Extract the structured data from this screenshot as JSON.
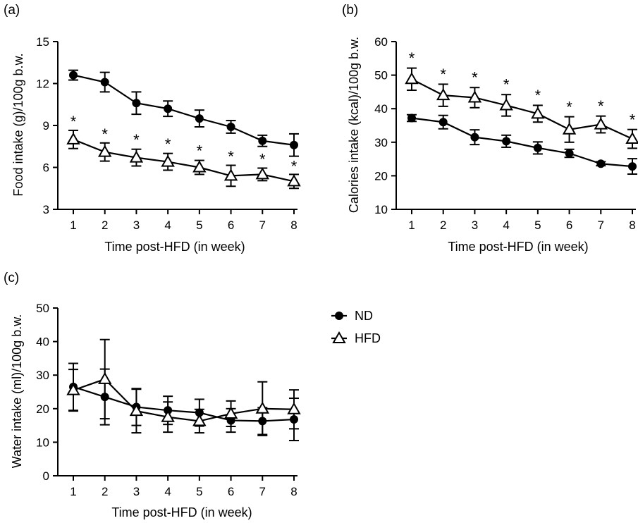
{
  "chart_data": [
    {
      "type": "line",
      "panel": "(a)",
      "xlabel": "Time post-HFD (in week)",
      "ylabel": "Food intake (g)/100g b.w.",
      "x": [
        1,
        2,
        3,
        4,
        5,
        6,
        7,
        8
      ],
      "ylim": [
        3,
        15
      ],
      "yticks": [
        3,
        6,
        9,
        12,
        15
      ],
      "series": [
        {
          "name": "ND",
          "values": [
            12.6,
            12.1,
            10.6,
            10.2,
            9.5,
            8.9,
            7.9,
            7.6
          ],
          "errors": [
            0.35,
            0.7,
            0.8,
            0.55,
            0.6,
            0.45,
            0.4,
            0.8
          ]
        },
        {
          "name": "HFD",
          "values": [
            8.0,
            7.1,
            6.7,
            6.4,
            6.0,
            5.4,
            5.5,
            5.0
          ],
          "errors": [
            0.65,
            0.65,
            0.6,
            0.6,
            0.5,
            0.75,
            0.45,
            0.5
          ]
        }
      ],
      "annotations": [
        {
          "text": "*",
          "x": 1,
          "y": 9.3
        },
        {
          "text": "*",
          "x": 2,
          "y": 8.4
        },
        {
          "text": "*",
          "x": 3,
          "y": 8.0
        },
        {
          "text": "*",
          "x": 4,
          "y": 7.7
        },
        {
          "text": "*",
          "x": 5,
          "y": 7.2
        },
        {
          "text": "*",
          "x": 6,
          "y": 6.8
        },
        {
          "text": "*",
          "x": 7,
          "y": 6.6
        },
        {
          "text": "*",
          "x": 8,
          "y": 6.1
        }
      ]
    },
    {
      "type": "line",
      "panel": "(b)",
      "xlabel": "Time post-HFD (in week)",
      "ylabel": "Calories intake (kcal)/100g b.w.",
      "x": [
        1,
        2,
        3,
        4,
        5,
        6,
        7,
        8
      ],
      "ylim": [
        10,
        60
      ],
      "yticks": [
        10,
        20,
        30,
        40,
        50,
        60
      ],
      "series": [
        {
          "name": "ND",
          "values": [
            37.2,
            36.0,
            31.5,
            30.3,
            28.3,
            26.7,
            23.6,
            22.8
          ],
          "errors": [
            1.0,
            2.0,
            2.2,
            1.8,
            1.8,
            1.2,
            0.6,
            2.3
          ]
        },
        {
          "name": "HFD",
          "values": [
            48.8,
            44.0,
            43.3,
            41.0,
            38.5,
            33.8,
            35.3,
            31.0
          ],
          "errors": [
            3.3,
            3.3,
            3.0,
            3.2,
            2.5,
            3.8,
            2.5,
            2.8
          ]
        }
      ],
      "annotations": [
        {
          "text": "*",
          "x": 1,
          "y": 55.2
        },
        {
          "text": "*",
          "x": 2,
          "y": 50.3
        },
        {
          "text": "*",
          "x": 3,
          "y": 49.4
        },
        {
          "text": "*",
          "x": 4,
          "y": 47.3
        },
        {
          "text": "*",
          "x": 5,
          "y": 44.0
        },
        {
          "text": "*",
          "x": 6,
          "y": 40.6
        },
        {
          "text": "*",
          "x": 7,
          "y": 40.9
        },
        {
          "text": "*",
          "x": 8,
          "y": 36.8
        }
      ]
    },
    {
      "type": "line",
      "panel": "(c)",
      "xlabel": "Time post-HFD (in week)",
      "ylabel": "Water intake (ml)/100g b.w.",
      "x": [
        1,
        2,
        3,
        4,
        5,
        6,
        7,
        8
      ],
      "ylim": [
        0,
        50
      ],
      "yticks": [
        0,
        10,
        20,
        30,
        40,
        50
      ],
      "series": [
        {
          "name": "ND",
          "values": [
            26.5,
            23.5,
            20.5,
            19.5,
            18.8,
            16.5,
            16.3,
            16.8
          ],
          "errors": [
            7.0,
            8.3,
            5.5,
            4.2,
            4.0,
            3.5,
            4.0,
            6.3
          ]
        },
        {
          "name": "HFD",
          "values": [
            25.5,
            28.8,
            19.3,
            17.5,
            16.3,
            18.5,
            20.0,
            19.8
          ],
          "errors": [
            6.2,
            11.8,
            6.5,
            4.5,
            3.5,
            3.8,
            8.0,
            5.8
          ]
        }
      ],
      "annotations": []
    }
  ],
  "legend": {
    "items": [
      {
        "label": "ND",
        "marker": "filled-circle"
      },
      {
        "label": "HFD",
        "marker": "open-triangle"
      }
    ]
  },
  "colors": {
    "ink": "#000000",
    "background": "#ffffff"
  }
}
